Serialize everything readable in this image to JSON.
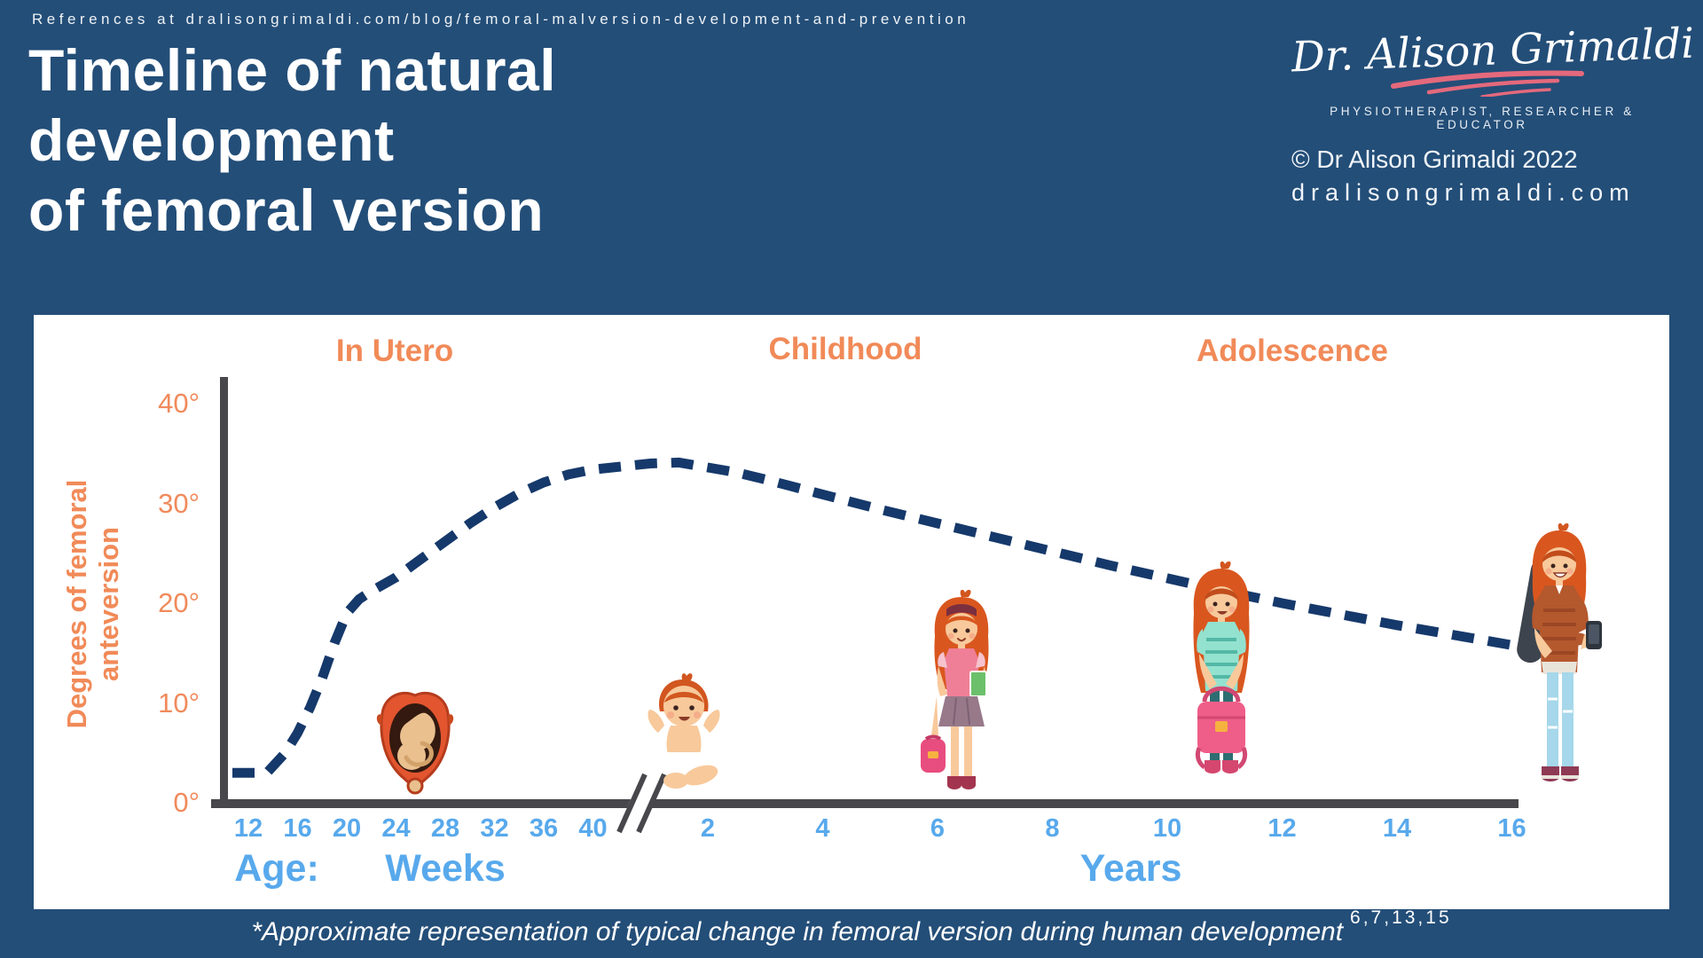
{
  "header": {
    "reference_line": "References at dralisongrimaldi.com/blog/femoral-malversion-development-and-prevention",
    "title_line1": "Timeline of natural",
    "title_line2": "development",
    "title_line3": "of femoral version"
  },
  "branding": {
    "logo_script": "Dr. Alison Grimaldi",
    "tagline": "PHYSIOTHERAPIST, RESEARCHER & EDUCATOR",
    "copyright": "© Dr Alison Grimaldi 2022",
    "website": "dralisongrimaldi.com",
    "swoosh_color": "#e4697c"
  },
  "colors": {
    "background": "#234e78",
    "panel": "#ffffff",
    "orange": "#f18a58",
    "light_blue": "#58a9ec",
    "curve_navy": "#16396b",
    "axis_charcoal": "#47474c"
  },
  "axis_labels": {
    "age": "Age:",
    "weeks": "Weeks",
    "years": "Years"
  },
  "footnote": {
    "text": "*Approximate representation of typical change in femoral version during human development",
    "references": "6,7,13,15"
  },
  "chart_data": {
    "type": "line",
    "title": "Timeline of natural development of femoral version",
    "ylabel": "Degrees of femoral anteversion",
    "ylabel_line1": "Degrees of femoral",
    "ylabel_line2": "anteversion",
    "xlabel": "Age (weeks in utero, then years after birth)",
    "ylim": [
      0,
      40
    ],
    "grid": false,
    "legend": false,
    "line_style": "dashed",
    "phases": [
      "In Utero",
      "Childhood",
      "Adolescence"
    ],
    "y_ticks": [
      {
        "label": "40°",
        "value": 40
      },
      {
        "label": "30°",
        "value": 30
      },
      {
        "label": "20°",
        "value": 20
      },
      {
        "label": "10°",
        "value": 10
      },
      {
        "label": "0°",
        "value": 0
      }
    ],
    "x_ticks_weeks": [
      12,
      16,
      20,
      24,
      28,
      32,
      36,
      40
    ],
    "x_ticks_years": [
      2,
      4,
      6,
      8,
      10,
      12,
      14,
      16
    ],
    "axis_break": "between 40 weeks gestation and early childhood",
    "series": [
      {
        "name": "Typical femoral anteversion (approximate)",
        "points_weeks": [
          {
            "age_weeks": 12,
            "degrees": 3
          },
          {
            "age_weeks": 13.5,
            "degrees": 3
          },
          {
            "age_weeks": 15,
            "degrees": 5
          },
          {
            "age_weeks": 16,
            "degrees": 7
          },
          {
            "age_weeks": 17,
            "degrees": 9.5
          },
          {
            "age_weeks": 18,
            "degrees": 12.5
          },
          {
            "age_weeks": 19,
            "degrees": 16
          },
          {
            "age_weeks": 20,
            "degrees": 19
          },
          {
            "age_weeks": 21,
            "degrees": 20.4
          },
          {
            "age_weeks": 22,
            "degrees": 21.2
          },
          {
            "age_weeks": 24,
            "degrees": 22.6
          },
          {
            "age_weeks": 26,
            "degrees": 24.4
          },
          {
            "age_weeks": 28,
            "degrees": 26.2
          },
          {
            "age_weeks": 30,
            "degrees": 28
          },
          {
            "age_weeks": 32,
            "degrees": 29.6
          },
          {
            "age_weeks": 34,
            "degrees": 31
          },
          {
            "age_weeks": 36,
            "degrees": 32.1
          },
          {
            "age_weeks": 38,
            "degrees": 32.9
          },
          {
            "age_weeks": 40,
            "degrees": 33.4
          }
        ],
        "points_years": [
          {
            "age_years": 1,
            "degrees": 34
          },
          {
            "age_years": 1.5,
            "degrees": 34.1
          },
          {
            "age_years": 2,
            "degrees": 33.6
          },
          {
            "age_years": 2.5,
            "degrees": 33.1
          },
          {
            "age_years": 3,
            "degrees": 32.4
          },
          {
            "age_years": 4,
            "degrees": 30.9
          },
          {
            "age_years": 5,
            "degrees": 29.4
          },
          {
            "age_years": 6,
            "degrees": 28
          },
          {
            "age_years": 7,
            "degrees": 26.6
          },
          {
            "age_years": 8,
            "degrees": 25.2
          },
          {
            "age_years": 9,
            "degrees": 23.8
          },
          {
            "age_years": 10,
            "degrees": 22.5
          },
          {
            "age_years": 11,
            "degrees": 21.2
          },
          {
            "age_years": 12,
            "degrees": 20
          },
          {
            "age_years": 13,
            "degrees": 18.9
          },
          {
            "age_years": 14,
            "degrees": 17.8
          },
          {
            "age_years": 15,
            "degrees": 16.8
          },
          {
            "age_years": 16,
            "degrees": 15.8
          }
        ]
      }
    ]
  },
  "illustrations": [
    {
      "name": "fetus-in-utero",
      "description": "fetus in uterus cross-section, placed near 24-28 weeks"
    },
    {
      "name": "sitting-baby",
      "description": "sitting baby with orange hair, placed near 2 years"
    },
    {
      "name": "young-girl",
      "description": "young girl with book and backpack, placed near 6 years"
    },
    {
      "name": "older-girl",
      "description": "girl in teal top holding pink backpack, placed near 10-11 years"
    },
    {
      "name": "teenager",
      "description": "teen with phone and guitar case, placed near 16 years"
    }
  ]
}
